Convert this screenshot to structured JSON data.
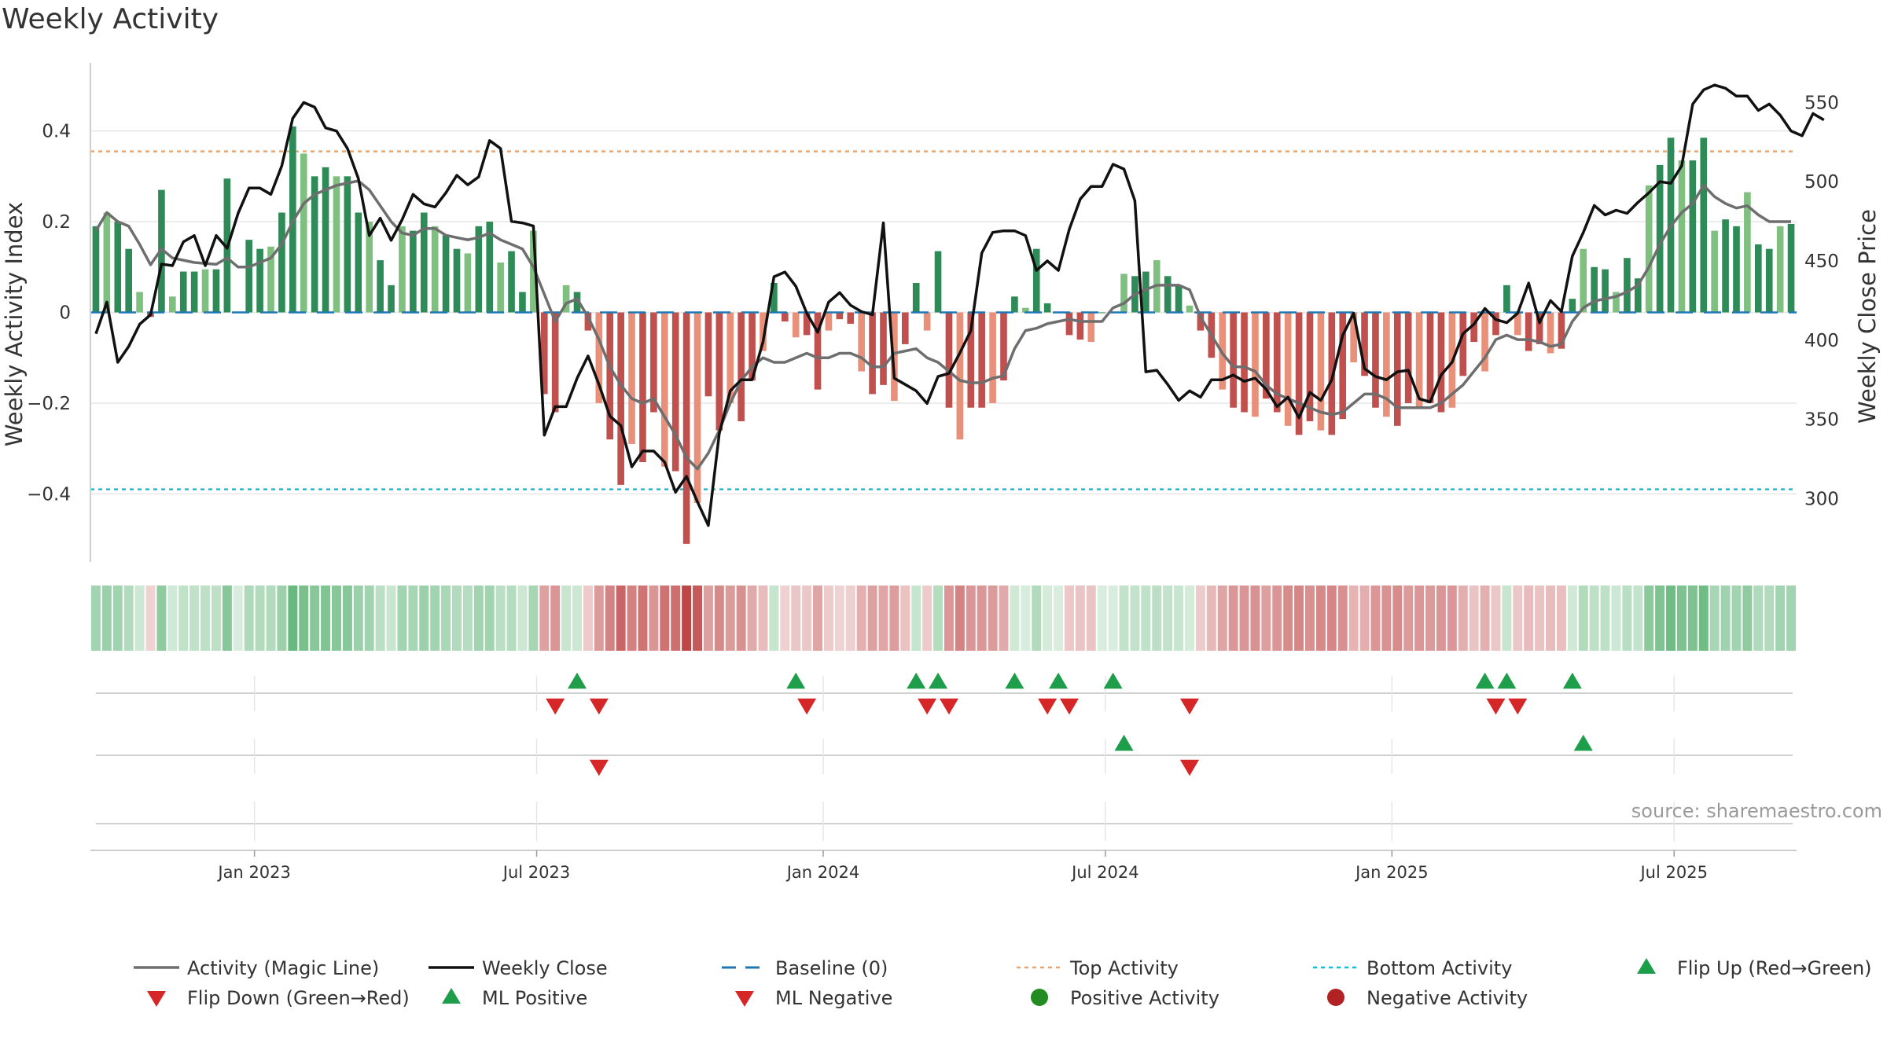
{
  "title": "Weekly Activity",
  "source": "source: sharemaestro.com",
  "colors": {
    "strong_green": "#2e8b57",
    "light_green": "#7fbf7f",
    "strong_red": "#c0504d",
    "light_red": "#e8907a",
    "magic_line": "#6e6e6e",
    "close_line": "#111111",
    "baseline": "#1f77b4",
    "top_line": "#f4a460",
    "bottom_line": "#17becf",
    "flip_up": "#1e9e4a",
    "flip_down": "#d62728",
    "positive_dot": "#228b22",
    "negative_dot": "#b22222",
    "grid": "#e6e6e6"
  },
  "chart_data": {
    "type": "bar+line",
    "title": "Weekly Activity",
    "ylabel_left": "Weekly Activity Index",
    "ylabel_right": "Weekly Close Price",
    "ylim_left": [
      -0.55,
      0.55
    ],
    "ylim_right": [
      260,
      575
    ],
    "yticks_left": [
      {
        "v": 0.4,
        "label": "0.4"
      },
      {
        "v": 0.2,
        "label": "0.2"
      },
      {
        "v": 0,
        "label": "0"
      },
      {
        "v": -0.2,
        "label": "−0.2"
      },
      {
        "v": -0.4,
        "label": "−0.4"
      }
    ],
    "yticks_right": [
      {
        "v": 550,
        "label": "550"
      },
      {
        "v": 500,
        "label": "500"
      },
      {
        "v": 450,
        "label": "450"
      },
      {
        "v": 400,
        "label": "400"
      },
      {
        "v": 350,
        "label": "350"
      },
      {
        "v": 300,
        "label": "300"
      }
    ],
    "x_range_weeks": [
      0,
      156
    ],
    "date_ticks": [
      {
        "w": 14.5,
        "label": "Jan 2023"
      },
      {
        "w": 40.3,
        "label": "Jul 2023"
      },
      {
        "w": 66.5,
        "label": "Jan 2024"
      },
      {
        "w": 92.3,
        "label": "Jul 2024"
      },
      {
        "w": 118.5,
        "label": "Jan 2025"
      },
      {
        "w": 144.3,
        "label": "Jul 2025"
      }
    ],
    "top_activity": 0.355,
    "bottom_activity": -0.39,
    "baseline": 0,
    "activity": [
      0.19,
      0.22,
      0.2,
      0.14,
      0.045,
      -0.01,
      0.27,
      0.035,
      0.09,
      0.09,
      0.095,
      0.095,
      0.295,
      0.0,
      0.16,
      0.14,
      0.145,
      0.22,
      0.41,
      0.35,
      0.3,
      0.32,
      0.3,
      0.3,
      0.22,
      0.2,
      0.115,
      0.06,
      0.19,
      0.18,
      0.22,
      0.19,
      0.17,
      0.14,
      0.13,
      0.19,
      0.2,
      0.11,
      0.135,
      0.045,
      0.18,
      -0.18,
      -0.22,
      0.06,
      0.045,
      -0.04,
      -0.2,
      -0.28,
      -0.38,
      -0.29,
      -0.33,
      -0.22,
      -0.34,
      -0.35,
      -0.51,
      -0.42,
      -0.185,
      -0.26,
      -0.2,
      -0.24,
      -0.15,
      -0.085,
      0.065,
      -0.02,
      -0.055,
      -0.05,
      -0.17,
      -0.04,
      -0.015,
      -0.025,
      -0.13,
      -0.18,
      -0.16,
      -0.195,
      -0.07,
      0.065,
      -0.04,
      0.135,
      -0.21,
      -0.28,
      -0.21,
      -0.21,
      -0.2,
      -0.15,
      0.035,
      0.01,
      0.14,
      0.02,
      0.0,
      -0.05,
      -0.06,
      -0.065,
      0.0,
      0.0,
      0.085,
      0.08,
      0.09,
      0.115,
      0.08,
      0.06,
      0.015,
      -0.04,
      -0.1,
      -0.17,
      -0.21,
      -0.22,
      -0.23,
      -0.19,
      -0.22,
      -0.25,
      -0.27,
      -0.24,
      -0.26,
      -0.27,
      -0.235,
      -0.11,
      -0.14,
      -0.21,
      -0.23,
      -0.25,
      -0.2,
      -0.21,
      -0.2,
      -0.22,
      -0.21,
      -0.14,
      -0.065,
      -0.13,
      -0.05,
      0.06,
      -0.05,
      -0.085,
      -0.07,
      -0.09,
      -0.08,
      0.03,
      0.14,
      0.1,
      0.095,
      0.045,
      0.12,
      0.075,
      0.28,
      0.325,
      0.385,
      0.335,
      0.335,
      0.385,
      0.18,
      0.205,
      0.19,
      0.265,
      0.15,
      0.14,
      0.19,
      0.195
    ],
    "magic_line": [
      0.18,
      0.22,
      0.2,
      0.19,
      0.15,
      0.105,
      0.14,
      0.12,
      0.115,
      0.11,
      0.108,
      0.106,
      0.12,
      0.1,
      0.1,
      0.11,
      0.12,
      0.15,
      0.2,
      0.24,
      0.26,
      0.27,
      0.28,
      0.285,
      0.29,
      0.27,
      0.235,
      0.2,
      0.175,
      0.17,
      0.185,
      0.185,
      0.17,
      0.165,
      0.16,
      0.165,
      0.175,
      0.16,
      0.15,
      0.14,
      0.1,
      0.04,
      -0.02,
      0.02,
      0.03,
      -0.01,
      -0.06,
      -0.12,
      -0.16,
      -0.19,
      -0.2,
      -0.19,
      -0.23,
      -0.27,
      -0.32,
      -0.345,
      -0.31,
      -0.26,
      -0.2,
      -0.15,
      -0.12,
      -0.1,
      -0.11,
      -0.11,
      -0.1,
      -0.09,
      -0.1,
      -0.1,
      -0.09,
      -0.09,
      -0.1,
      -0.12,
      -0.12,
      -0.09,
      -0.085,
      -0.08,
      -0.1,
      -0.11,
      -0.13,
      -0.15,
      -0.155,
      -0.155,
      -0.145,
      -0.14,
      -0.08,
      -0.04,
      -0.035,
      -0.025,
      -0.02,
      -0.015,
      -0.02,
      -0.02,
      -0.02,
      0.01,
      0.02,
      0.04,
      0.05,
      0.06,
      0.06,
      0.06,
      0.05,
      -0.01,
      -0.05,
      -0.09,
      -0.12,
      -0.12,
      -0.13,
      -0.16,
      -0.18,
      -0.19,
      -0.2,
      -0.21,
      -0.22,
      -0.225,
      -0.22,
      -0.2,
      -0.18,
      -0.18,
      -0.19,
      -0.21,
      -0.21,
      -0.21,
      -0.21,
      -0.2,
      -0.18,
      -0.16,
      -0.13,
      -0.1,
      -0.06,
      -0.05,
      -0.06,
      -0.06,
      -0.065,
      -0.075,
      -0.07,
      -0.02,
      0.01,
      0.025,
      0.03,
      0.035,
      0.045,
      0.06,
      0.1,
      0.15,
      0.19,
      0.22,
      0.24,
      0.28,
      0.255,
      0.24,
      0.23,
      0.235,
      0.215,
      0.2,
      0.2,
      0.2
    ],
    "weekly_close": [
      404,
      424,
      386,
      396,
      410,
      416,
      448,
      447,
      462,
      466,
      447,
      466,
      458,
      480,
      496,
      496,
      492,
      510,
      540,
      550,
      547,
      534,
      532,
      521,
      502,
      466,
      477,
      463,
      476,
      492,
      486,
      484,
      493,
      504,
      498,
      503,
      526,
      521,
      475,
      474,
      472,
      340,
      358,
      358,
      376,
      390,
      372,
      352,
      346,
      320,
      330,
      330,
      323,
      304,
      314,
      298,
      283,
      341,
      368,
      375,
      375,
      399,
      440,
      443,
      434,
      417,
      405,
      424,
      430,
      422,
      418,
      416,
      474,
      376,
      372,
      368,
      360,
      377,
      379,
      392,
      406,
      455,
      468,
      469,
      469,
      466,
      444,
      450,
      444,
      470,
      489,
      497,
      497,
      511,
      508,
      488,
      380,
      381,
      372,
      362,
      368,
      364,
      375,
      375,
      378,
      374,
      376,
      369,
      358,
      364,
      351,
      367,
      362,
      375,
      403,
      417,
      382,
      377,
      375,
      380,
      381,
      363,
      361,
      378,
      386,
      404,
      410,
      420,
      413,
      411,
      417,
      436,
      411,
      425,
      418,
      453,
      468,
      485,
      479,
      482,
      480,
      487,
      493,
      500,
      499,
      510,
      549,
      558,
      561,
      559,
      554,
      554,
      545,
      549,
      542,
      532,
      529,
      543,
      539
    ],
    "strip": [
      0.19,
      0.22,
      0.2,
      0.14,
      0.045,
      -0.01,
      0.27,
      0.035,
      0.09,
      0.09,
      0.095,
      0.095,
      0.295,
      0.0,
      0.16,
      0.14,
      0.145,
      0.22,
      0.41,
      0.35,
      0.3,
      0.32,
      0.3,
      0.3,
      0.22,
      0.2,
      0.115,
      0.06,
      0.19,
      0.18,
      0.22,
      0.19,
      0.17,
      0.14,
      0.13,
      0.19,
      0.2,
      0.11,
      0.135,
      0.045,
      0.18,
      -0.18,
      -0.22,
      0.06,
      0.045,
      -0.04,
      -0.2,
      -0.28,
      -0.38,
      -0.29,
      -0.33,
      -0.22,
      -0.34,
      -0.35,
      -0.51,
      -0.42,
      -0.185,
      -0.26,
      -0.2,
      -0.24,
      -0.15,
      -0.085,
      0.065,
      -0.02,
      -0.055,
      -0.05,
      -0.17,
      -0.04,
      -0.015,
      -0.025,
      -0.13,
      -0.18,
      -0.16,
      -0.195,
      -0.07,
      0.065,
      -0.04,
      0.135,
      -0.21,
      -0.28,
      -0.21,
      -0.21,
      -0.2,
      -0.15,
      0.035,
      0.01,
      0.14,
      0.02,
      0.0,
      -0.05,
      -0.06,
      -0.065,
      0.0,
      0.0,
      0.085,
      0.08,
      0.09,
      0.115,
      0.08,
      0.06,
      0.015,
      -0.04,
      -0.1,
      -0.17,
      -0.21,
      -0.22,
      -0.23,
      -0.19,
      -0.22,
      -0.25,
      -0.27,
      -0.24,
      -0.26,
      -0.27,
      -0.235,
      -0.11,
      -0.14,
      -0.21,
      -0.23,
      -0.25,
      -0.2,
      -0.21,
      -0.2,
      -0.22,
      -0.21,
      -0.14,
      -0.065,
      -0.13,
      -0.05,
      0.06,
      -0.05,
      -0.085,
      -0.07,
      -0.09,
      -0.08,
      0.03,
      0.14,
      0.1,
      0.095,
      0.045,
      0.12,
      0.075,
      0.28,
      0.325,
      0.385,
      0.335,
      0.335,
      0.385,
      0.18,
      0.205,
      0.19,
      0.265,
      0.15,
      0.14,
      0.19,
      0.195
    ],
    "flip_up_weeks": [
      44,
      64,
      75,
      77,
      84,
      88,
      93,
      127,
      129,
      135
    ],
    "flip_down_weeks": [
      42,
      46,
      65,
      76,
      78,
      87,
      89,
      100,
      128,
      130
    ],
    "ml_positive_weeks": [
      94,
      136
    ],
    "ml_negative_weeks": [
      46,
      100
    ]
  },
  "legend": [
    {
      "key": "magic",
      "label": "Activity (Magic Line)"
    },
    {
      "key": "close",
      "label": "Weekly Close"
    },
    {
      "key": "baseline",
      "label": "Baseline (0)"
    },
    {
      "key": "top",
      "label": "Top Activity"
    },
    {
      "key": "bottom",
      "label": "Bottom Activity"
    },
    {
      "key": "flipup",
      "label": "Flip Up (Red→Green)"
    },
    {
      "key": "flipdown",
      "label": "Flip Down (Green→Red)"
    },
    {
      "key": "mlpos",
      "label": "ML Positive"
    },
    {
      "key": "mlneg",
      "label": "ML Negative"
    },
    {
      "key": "posact",
      "label": "Positive Activity"
    },
    {
      "key": "negact",
      "label": "Negative Activity"
    }
  ]
}
